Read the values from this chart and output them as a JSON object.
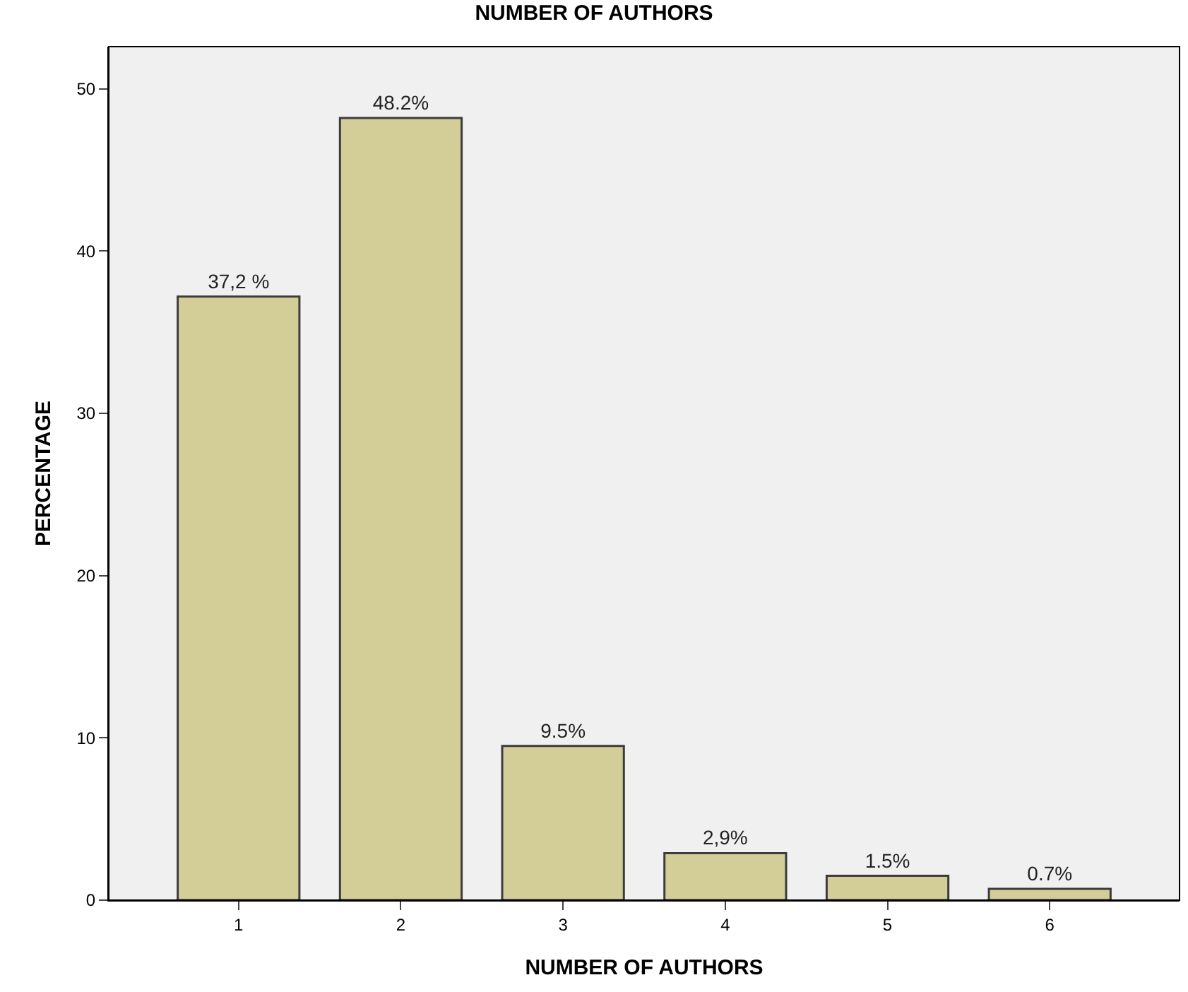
{
  "chart_data": {
    "type": "bar",
    "title": "NUMBER OF AUTHORS",
    "xlabel": "NUMBER OF AUTHORS",
    "ylabel": "PERCENTAGE",
    "categories": [
      "1",
      "2",
      "3",
      "4",
      "5",
      "6"
    ],
    "values": [
      37.2,
      48.2,
      9.5,
      2.9,
      1.5,
      0.7
    ],
    "value_labels": [
      "37,2 %",
      "48.2%",
      "9.5%",
      "2,9%",
      "1.5%",
      "0.7%"
    ],
    "color": "#d3ce97",
    "ylim": [
      0,
      52.6
    ],
    "yticks": [
      0,
      10,
      20,
      30,
      40,
      50
    ],
    "grid": false,
    "legend": false
  }
}
